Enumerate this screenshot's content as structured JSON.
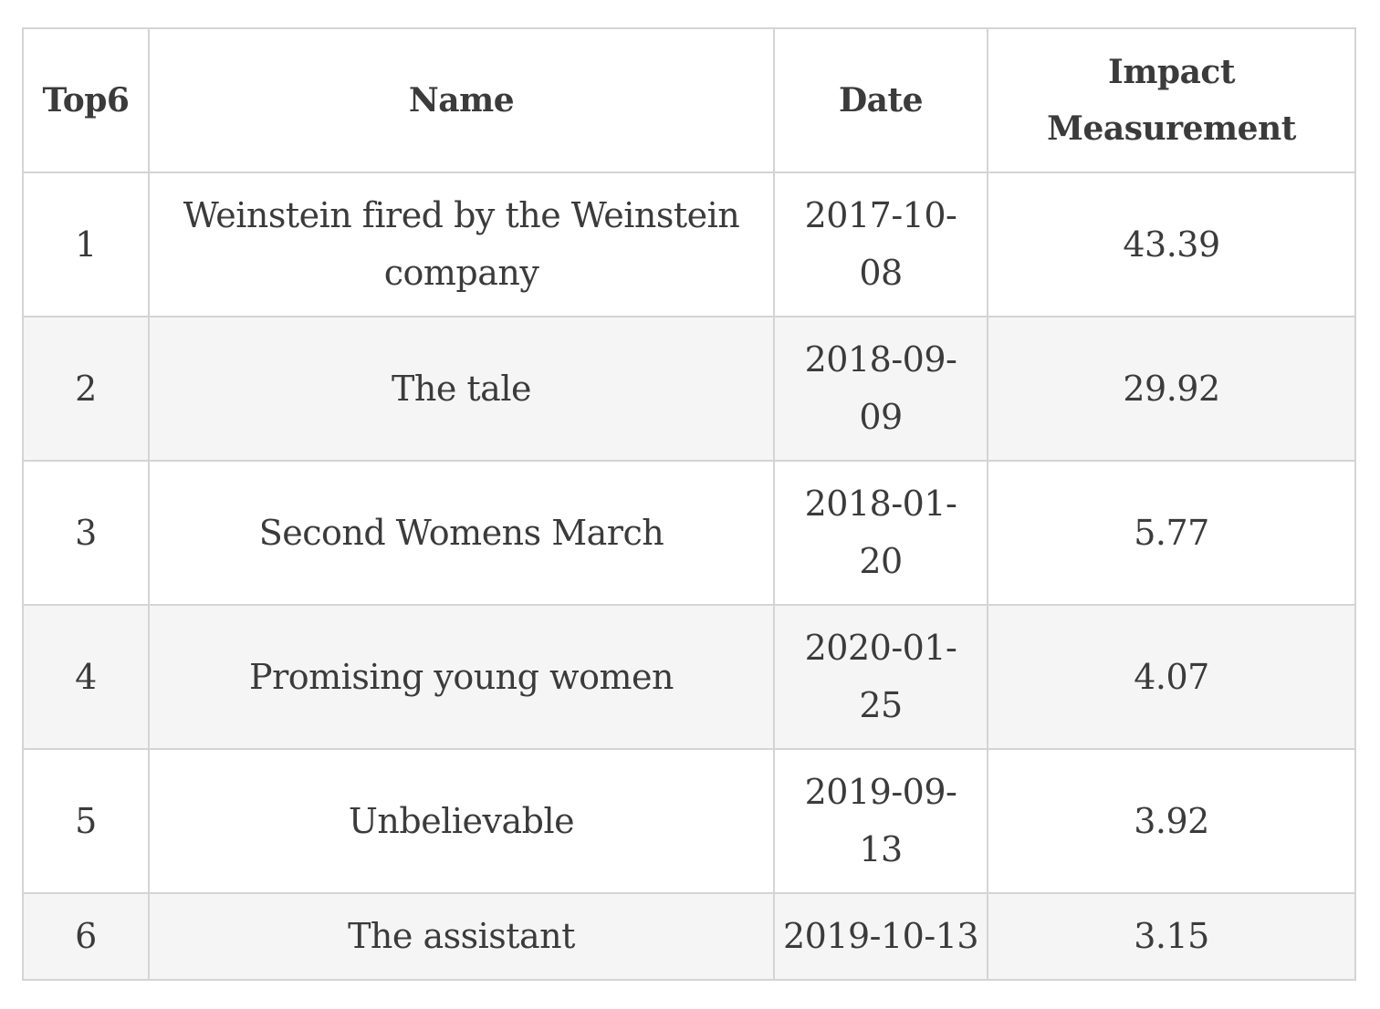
{
  "table": {
    "headers": {
      "rank": "Top6",
      "name": "Name",
      "date": "Date",
      "impact": "Impact Measurement"
    },
    "rows": [
      {
        "rank": "1",
        "name": "Weinstein fired by the Weinstein company",
        "date": "2017-10-08",
        "impact": "43.39"
      },
      {
        "rank": "2",
        "name": "The tale",
        "date": "2018-09-09",
        "impact": "29.92"
      },
      {
        "rank": "3",
        "name": "Second Womens March",
        "date": "2018-01-20",
        "impact": "5.77"
      },
      {
        "rank": "4",
        "name": "Promising young women",
        "date": "2020-01-25",
        "impact": "4.07"
      },
      {
        "rank": "5",
        "name": "Unbelievable",
        "date": "2019-09-13",
        "impact": "3.92"
      },
      {
        "rank": "6",
        "name": "The assistant",
        "date": "2019-10-13",
        "impact": "3.15"
      }
    ]
  }
}
